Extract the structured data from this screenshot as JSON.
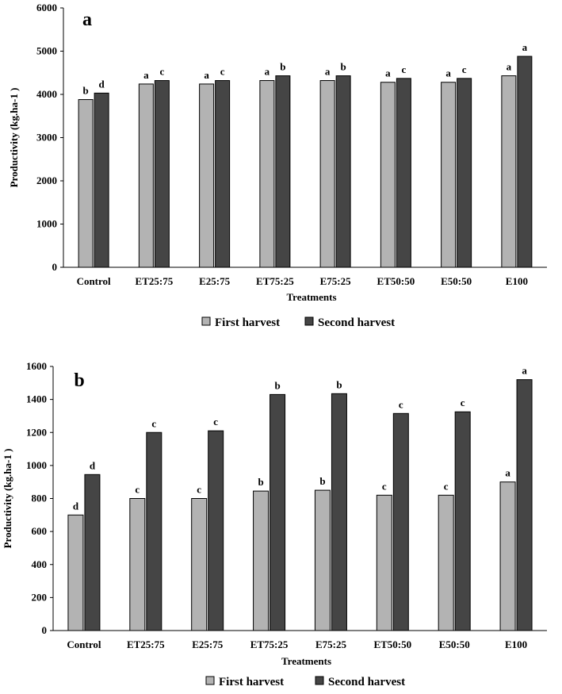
{
  "chart_data": [
    {
      "type": "bar",
      "panel_label": "a",
      "categories": [
        "Control",
        "ET25:75",
        "E25:75",
        "ET75:25",
        "E75:25",
        "ET50:50",
        "E50:50",
        "E100"
      ],
      "series": [
        {
          "name": "First harvest",
          "color": "#b3b3b3",
          "values": [
            3880,
            4240,
            4240,
            4320,
            4320,
            4280,
            4280,
            4430
          ],
          "letters": [
            "b",
            "a",
            "a",
            "a",
            "a",
            "a",
            "a",
            "a"
          ]
        },
        {
          "name": "Second harvest",
          "color": "#454545",
          "values": [
            4030,
            4320,
            4320,
            4430,
            4430,
            4370,
            4370,
            4880
          ],
          "letters": [
            "d",
            "c",
            "c",
            "b",
            "b",
            "c",
            "c",
            "a"
          ]
        }
      ],
      "xlabel": "Treatments",
      "ylabel": "Productivity (kg.ha-1 )",
      "ylim": [
        0,
        6000
      ],
      "yticks": [
        0,
        1000,
        2000,
        3000,
        4000,
        5000,
        6000
      ],
      "legend": "bottom"
    },
    {
      "type": "bar",
      "panel_label": "b",
      "categories": [
        "Control",
        "ET25:75",
        "E25:75",
        "ET75:25",
        "E75:25",
        "ET50:50",
        "E50:50",
        "E100"
      ],
      "series": [
        {
          "name": "First harvest",
          "color": "#b3b3b3",
          "values": [
            700,
            800,
            800,
            845,
            850,
            820,
            820,
            900
          ],
          "letters": [
            "d",
            "c",
            "c",
            "b",
            "b",
            "c",
            "c",
            "a"
          ]
        },
        {
          "name": "Second harvest",
          "color": "#454545",
          "values": [
            945,
            1200,
            1210,
            1430,
            1435,
            1315,
            1325,
            1520
          ],
          "letters": [
            "d",
            "c",
            "c",
            "b",
            "b",
            "c",
            "c",
            "a"
          ]
        }
      ],
      "xlabel": "Treatments",
      "ylabel": "Productivity (kg.ha-1 )",
      "ylim": [
        0,
        1600
      ],
      "yticks": [
        0,
        200,
        400,
        600,
        800,
        1000,
        1200,
        1400,
        1600
      ],
      "legend": "bottom"
    }
  ]
}
